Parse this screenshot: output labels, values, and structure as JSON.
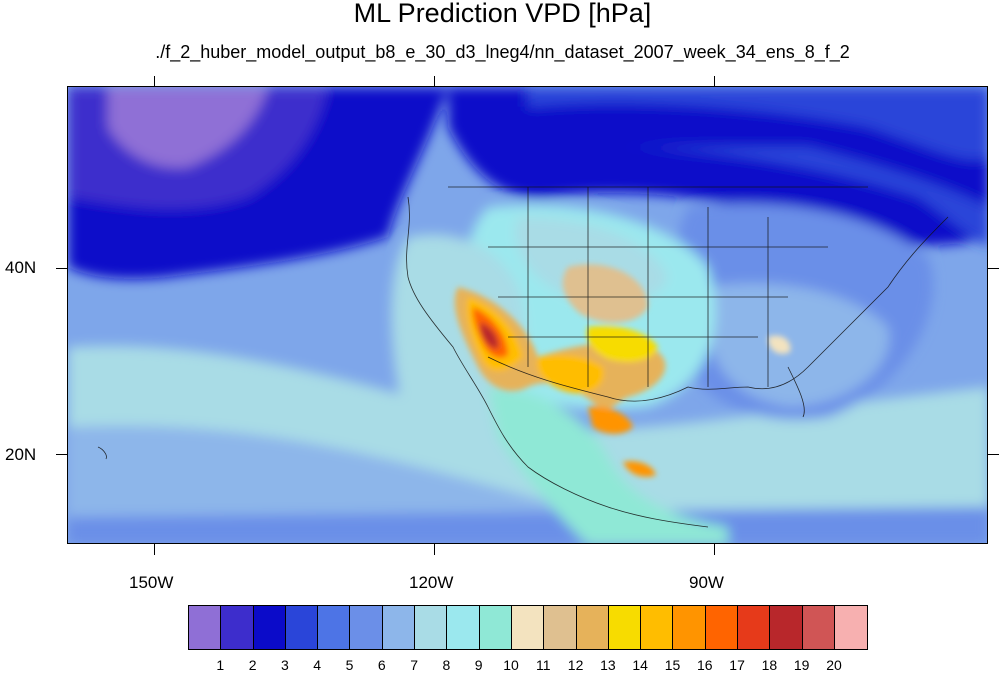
{
  "title": "ML Prediction VPD [hPa]",
  "subtitle": "./f_2_huber_model_output_b8_e_30_d3_lneg4/nn_dataset_2007_week_34_ens_8_f_2",
  "lat_labels": [
    "40N",
    "20N"
  ],
  "lon_labels": [
    "150W",
    "120W",
    "90W"
  ],
  "colorbar": {
    "colors": [
      "#8f6fd6",
      "#3d2dcc",
      "#0b0bc9",
      "#2a45d9",
      "#4d74e6",
      "#6b8fe8",
      "#8db6ea",
      "#a9dce6",
      "#9be8ee",
      "#8fe8d6",
      "#f3e3bf",
      "#dfc090",
      "#e6b25a",
      "#f7dc00",
      "#ffbd00",
      "#ff9400",
      "#ff6400",
      "#e63a1a",
      "#b8272b",
      "#d05555",
      "#f7b0b0"
    ],
    "labels": [
      "1",
      "2",
      "3",
      "4",
      "5",
      "6",
      "7",
      "8",
      "9",
      "10",
      "11",
      "12",
      "13",
      "14",
      "15",
      "16",
      "17",
      "18",
      "19",
      "20"
    ]
  }
}
